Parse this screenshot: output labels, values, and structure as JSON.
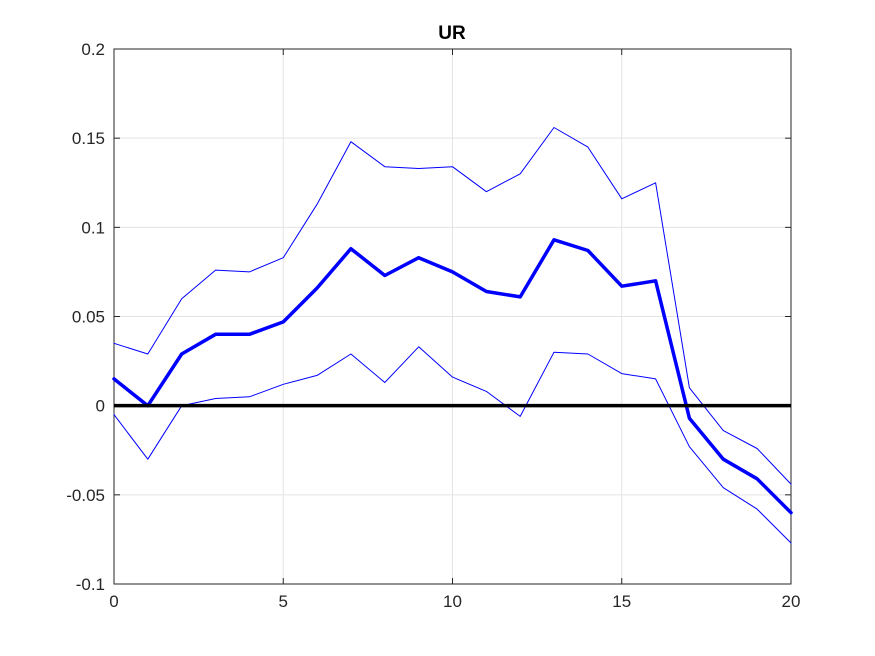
{
  "chart_data": {
    "type": "line",
    "title": "UR",
    "xlabel": "",
    "ylabel": "",
    "xlim": [
      0,
      20
    ],
    "ylim": [
      -0.1,
      0.2
    ],
    "grid": true,
    "x_ticks": [
      "0",
      "5",
      "10",
      "15",
      "20"
    ],
    "y_ticks": [
      "-0.1",
      "-0.05",
      "0",
      "0.05",
      "0.1",
      "0.15",
      "0.2"
    ],
    "x": [
      0,
      1,
      2,
      3,
      4,
      5,
      6,
      7,
      8,
      9,
      10,
      11,
      12,
      13,
      14,
      15,
      16,
      17,
      18,
      19,
      20
    ],
    "series": [
      {
        "role": "upper-band",
        "color": "#0000ff",
        "values": [
          0.035,
          0.029,
          0.06,
          0.076,
          0.075,
          0.083,
          0.113,
          0.148,
          0.134,
          0.133,
          0.134,
          0.12,
          0.13,
          0.156,
          0.145,
          0.116,
          0.125,
          0.01,
          -0.014,
          -0.024,
          -0.044
        ]
      },
      {
        "role": "median",
        "color": "#0000ff",
        "values": [
          0.015,
          0.0,
          0.029,
          0.04,
          0.04,
          0.047,
          0.066,
          0.088,
          0.073,
          0.083,
          0.075,
          0.064,
          0.061,
          0.093,
          0.087,
          0.067,
          0.07,
          -0.007,
          -0.03,
          -0.041,
          -0.06
        ]
      },
      {
        "role": "lower-band",
        "color": "#0000ff",
        "values": [
          -0.005,
          -0.03,
          0.0,
          0.004,
          0.005,
          0.012,
          0.017,
          0.029,
          0.013,
          0.033,
          0.016,
          0.008,
          -0.006,
          0.03,
          0.029,
          0.018,
          0.015,
          -0.023,
          -0.046,
          -0.058,
          -0.077
        ]
      }
    ],
    "reference_line": {
      "y": 0,
      "color": "#000000"
    }
  }
}
